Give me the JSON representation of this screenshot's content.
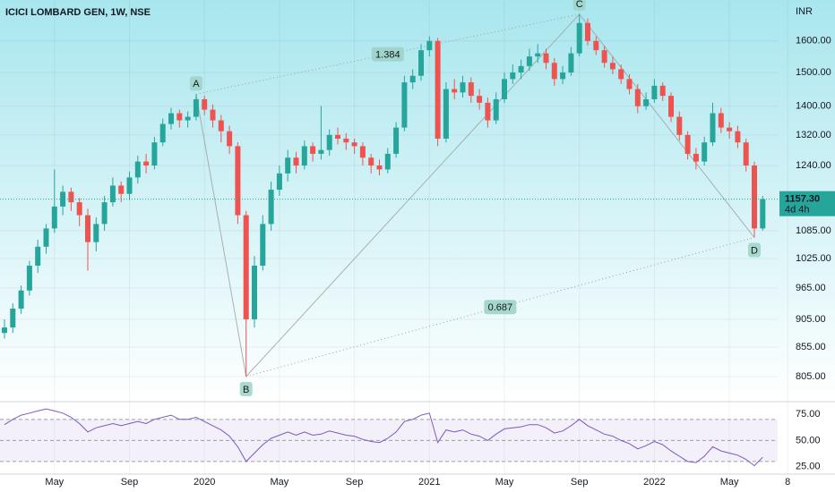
{
  "chart_data": {
    "type": "candlestick",
    "title": "ICICI LOMBARD GEN, 1W, NSE",
    "unit": "INR",
    "log_scale": true,
    "grid": true,
    "up_color": "#26a69a",
    "down_color": "#ef5350",
    "categories": [
      null,
      null,
      null,
      null,
      null,
      null,
      "May",
      null,
      null,
      null,
      null,
      null,
      null,
      null,
      null,
      "Sep",
      null,
      null,
      null,
      null,
      null,
      null,
      null,
      null,
      "2020",
      null,
      null,
      null,
      null,
      null,
      null,
      null,
      null,
      "May",
      null,
      null,
      null,
      null,
      null,
      null,
      null,
      null,
      "Sep",
      null,
      null,
      null,
      null,
      null,
      null,
      null,
      null,
      "2021",
      null,
      null,
      null,
      null,
      null,
      null,
      null,
      null,
      "May",
      null,
      null,
      null,
      null,
      null,
      null,
      null,
      null,
      "Sep",
      null,
      null,
      null,
      null,
      null,
      null,
      null,
      null,
      "2022",
      null,
      null,
      null,
      null,
      null,
      null,
      null,
      null,
      "May",
      null,
      null,
      null,
      null,
      null,
      null,
      "8"
    ],
    "open": [
      880,
      890,
      925,
      960,
      1010,
      1050,
      1090,
      1140,
      1175,
      1150,
      1120,
      1060,
      1100,
      1150,
      1190,
      1170,
      1210,
      1250,
      1240,
      1300,
      1350,
      1380,
      1360,
      1370,
      1420,
      1390,
      1360,
      1330,
      1290,
      1120,
      905,
      1010,
      1100,
      1180,
      1220,
      1260,
      1240,
      1290,
      1270,
      1280,
      1320,
      1310,
      1300,
      1290,
      1260,
      1240,
      1230,
      1270,
      1340,
      1470,
      1490,
      1570,
      1600,
      1310,
      1450,
      1440,
      1470,
      1430,
      1410,
      1360,
      1420,
      1480,
      1500,
      1520,
      1550,
      1560,
      1530,
      1480,
      1500,
      1560,
      1660,
      1600,
      1570,
      1530,
      1510,
      1480,
      1450,
      1400,
      1420,
      1460,
      1430,
      1370,
      1320,
      1270,
      1250,
      1300,
      1380,
      1340,
      1330,
      1300,
      1240,
      1090,
      null,
      null,
      null
    ],
    "high": [
      905,
      935,
      970,
      1020,
      1065,
      1100,
      1230,
      1190,
      1185,
      1160,
      1135,
      1115,
      1165,
      1210,
      1200,
      1225,
      1265,
      1270,
      1315,
      1365,
      1395,
      1390,
      1385,
      1435,
      1430,
      1405,
      1375,
      1345,
      1300,
      1130,
      1030,
      1120,
      1200,
      1240,
      1280,
      1275,
      1305,
      1300,
      1400,
      1335,
      1340,
      1325,
      1310,
      1300,
      1270,
      1255,
      1285,
      1355,
      1490,
      1510,
      1590,
      1615,
      1610,
      1470,
      1480,
      1490,
      1485,
      1450,
      1425,
      1440,
      1500,
      1525,
      1540,
      1575,
      1590,
      1575,
      1545,
      1520,
      1580,
      1690,
      1675,
      1615,
      1585,
      1550,
      1525,
      1495,
      1465,
      1440,
      1480,
      1470,
      1440,
      1385,
      1330,
      1285,
      1315,
      1410,
      1395,
      1355,
      1345,
      1310,
      1250,
      1165,
      null,
      null,
      null
    ],
    "low": [
      870,
      880,
      915,
      950,
      995,
      1035,
      1080,
      1120,
      1130,
      1095,
      1000,
      1040,
      1085,
      1140,
      1150,
      1155,
      1195,
      1220,
      1230,
      1290,
      1335,
      1340,
      1340,
      1360,
      1375,
      1340,
      1300,
      1270,
      1100,
      805,
      890,
      1000,
      1085,
      1165,
      1200,
      1220,
      1230,
      1250,
      1255,
      1265,
      1295,
      1280,
      1270,
      1240,
      1220,
      1215,
      1220,
      1260,
      1330,
      1450,
      1475,
      1550,
      1290,
      1300,
      1420,
      1425,
      1410,
      1390,
      1340,
      1350,
      1410,
      1465,
      1480,
      1505,
      1530,
      1510,
      1460,
      1465,
      1490,
      1550,
      1585,
      1555,
      1515,
      1495,
      1465,
      1435,
      1380,
      1390,
      1410,
      1415,
      1355,
      1305,
      1255,
      1230,
      1240,
      1290,
      1325,
      1310,
      1285,
      1225,
      1070,
      1085,
      null,
      null,
      null
    ],
    "close": [
      890,
      925,
      960,
      1010,
      1050,
      1090,
      1140,
      1175,
      1150,
      1120,
      1060,
      1100,
      1150,
      1190,
      1170,
      1210,
      1250,
      1240,
      1300,
      1350,
      1380,
      1360,
      1370,
      1420,
      1390,
      1360,
      1330,
      1290,
      1120,
      905,
      1010,
      1100,
      1180,
      1220,
      1260,
      1240,
      1290,
      1270,
      1280,
      1320,
      1310,
      1300,
      1290,
      1260,
      1240,
      1230,
      1270,
      1340,
      1470,
      1490,
      1570,
      1600,
      1310,
      1450,
      1440,
      1470,
      1430,
      1410,
      1360,
      1420,
      1480,
      1500,
      1520,
      1550,
      1560,
      1530,
      1480,
      1500,
      1560,
      1660,
      1600,
      1570,
      1530,
      1510,
      1480,
      1450,
      1400,
      1420,
      1460,
      1430,
      1370,
      1320,
      1270,
      1250,
      1300,
      1380,
      1340,
      1330,
      1300,
      1240,
      1090,
      1157.3,
      null,
      null,
      null
    ],
    "ylim": [
      766,
      1740
    ],
    "yticks": [
      {
        "value": 805,
        "label": "805.00"
      },
      {
        "value": 855,
        "label": "855.00"
      },
      {
        "value": 905,
        "label": "905.00"
      },
      {
        "value": 965,
        "label": "965.00"
      },
      {
        "value": 1025,
        "label": "1025.00"
      },
      {
        "value": 1085,
        "label": "1085.00"
      },
      {
        "value": 1240,
        "label": "1240.00"
      },
      {
        "value": 1320,
        "label": "1320.00"
      },
      {
        "value": 1400,
        "label": "1400.00"
      },
      {
        "value": 1500,
        "label": "1500.00"
      },
      {
        "value": 1600,
        "label": "1600.00"
      }
    ],
    "last_price": {
      "value": 1157.3,
      "label": "1157.30",
      "countdown": "4d 4h"
    },
    "pattern": {
      "points": [
        {
          "label": "A",
          "x": 23,
          "y": 1435
        },
        {
          "label": "B",
          "x": 29,
          "y": 805
        },
        {
          "label": "C",
          "x": 69,
          "y": 1690
        },
        {
          "label": "D",
          "x": 90,
          "y": 1070
        }
      ],
      "ratios": [
        {
          "value": 1.384,
          "from": 0,
          "to": 2
        },
        {
          "value": 0.687,
          "from": 1,
          "to": 3
        }
      ]
    },
    "rsi": {
      "color": "#7e57c2",
      "values": [
        65,
        70,
        74,
        76,
        78,
        80,
        78,
        76,
        72,
        66,
        58,
        62,
        64,
        66,
        64,
        66,
        68,
        66,
        70,
        72,
        74,
        70,
        70,
        72,
        68,
        64,
        60,
        54,
        44,
        30,
        38,
        46,
        52,
        55,
        58,
        55,
        58,
        55,
        56,
        59,
        57,
        55,
        54,
        51,
        49,
        48,
        52,
        58,
        68,
        70,
        74,
        76,
        48,
        60,
        58,
        60,
        56,
        54,
        50,
        56,
        61,
        62,
        63,
        65,
        65,
        62,
        57,
        59,
        64,
        70,
        64,
        60,
        56,
        54,
        50,
        47,
        42,
        45,
        49,
        46,
        40,
        35,
        30,
        29,
        35,
        44,
        40,
        38,
        36,
        32,
        26,
        34,
        null,
        null,
        null
      ],
      "ylim": [
        18,
        86
      ],
      "yticks": [
        {
          "value": 25,
          "label": "25.00"
        },
        {
          "value": 50,
          "label": "50.00"
        },
        {
          "value": 75,
          "label": "75.00"
        }
      ],
      "levels": [
        30,
        50,
        70
      ]
    }
  }
}
